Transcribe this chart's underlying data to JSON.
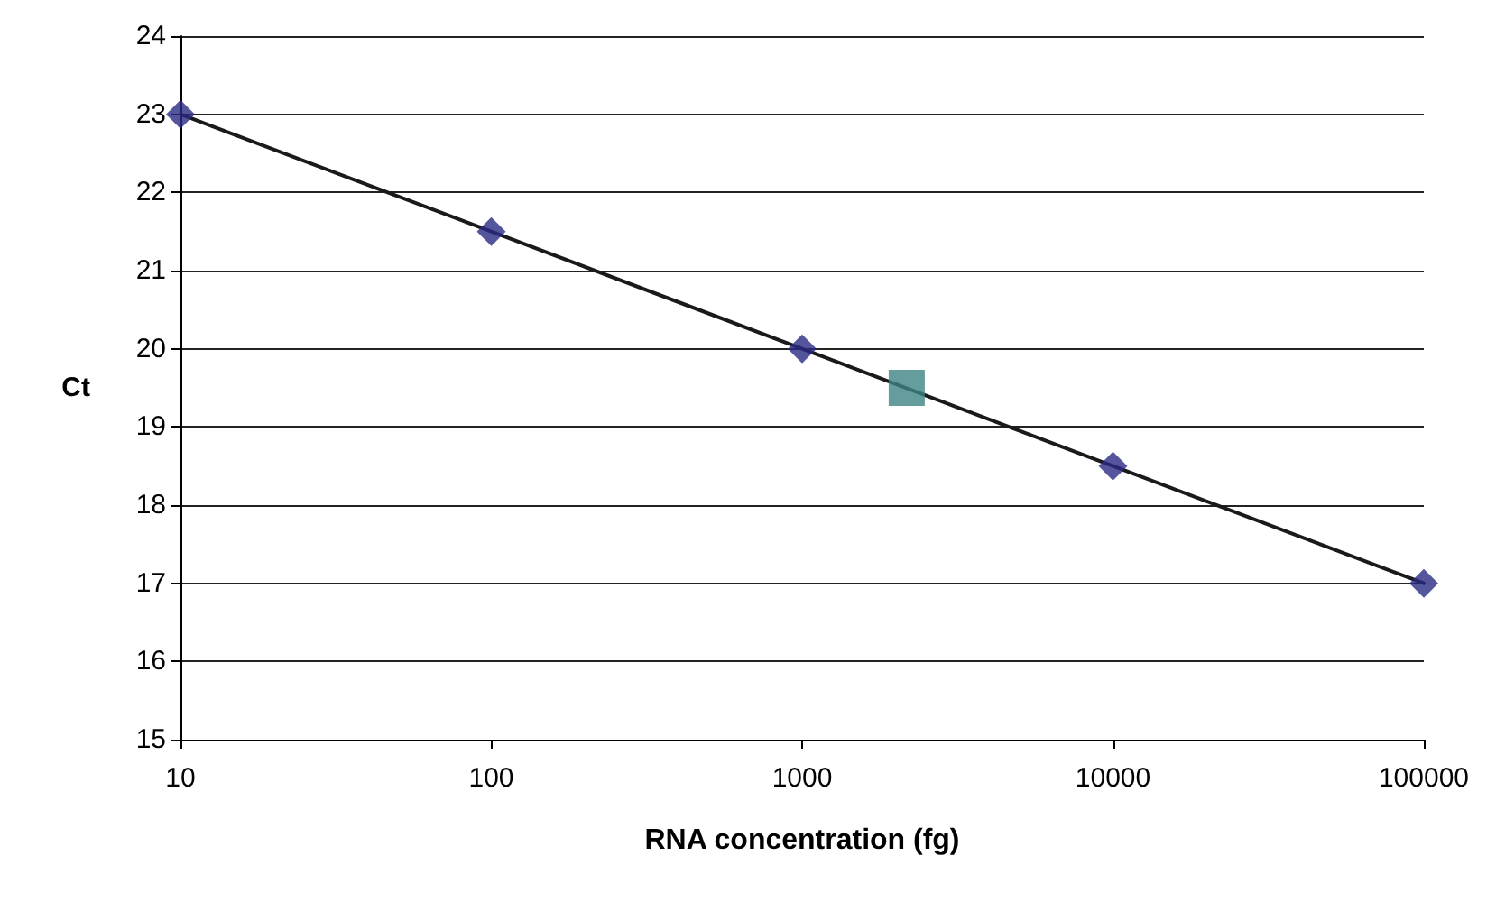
{
  "chart_data": {
    "type": "scatter",
    "xlabel": "RNA concentration (fg)",
    "ylabel": "Ct",
    "log": "x",
    "xlim": [
      10,
      100000
    ],
    "xticks": [
      10,
      100,
      1000,
      10000,
      100000
    ],
    "ylim": [
      15,
      24
    ],
    "yticks": [
      15,
      16,
      17,
      18,
      19,
      20,
      21,
      22,
      23,
      24
    ],
    "grid": "y",
    "series": [
      {
        "type": "line",
        "color": "#1a1a1a",
        "x": [
          10,
          100,
          1000,
          10000,
          100000
        ],
        "values": [
          23,
          21.5,
          20,
          18.5,
          17
        ],
        "marker": "none"
      },
      {
        "color": "#2b2b85",
        "x": [
          10,
          100,
          1000,
          10000,
          100000
        ],
        "values": [
          23,
          21.5,
          20,
          18.5,
          17
        ],
        "marker": "diamond"
      },
      {
        "color": "#3f8483",
        "x": [
          2170
        ],
        "values": [
          19.5
        ],
        "marker": "square"
      }
    ]
  }
}
